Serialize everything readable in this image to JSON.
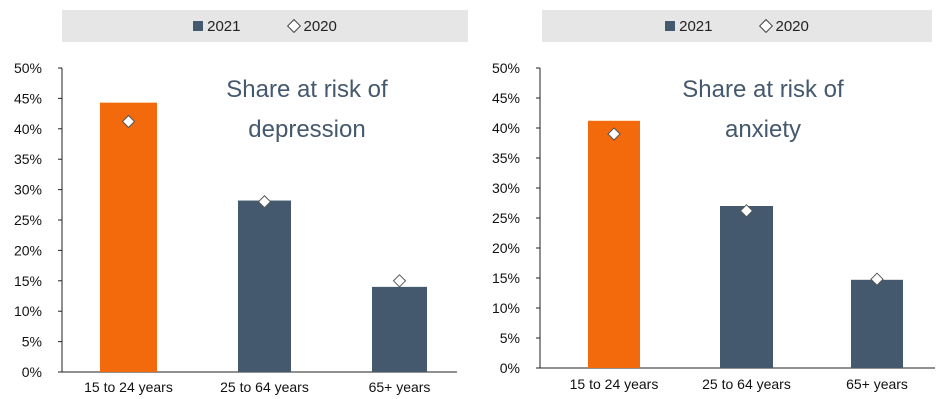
{
  "colors": {
    "bar_youth": "#f26a0b",
    "bar_other": "#44586e",
    "legend_bg": "#e6e6e6",
    "title_text": "#44586e",
    "axis": "#222222"
  },
  "legend": {
    "series_2021": "2021",
    "series_2020": "2020"
  },
  "chart_data": [
    {
      "type": "bar",
      "title_lines": [
        "Share at risk of",
        "depression"
      ],
      "categories": [
        "15 to 24 years",
        "25 to 64 years",
        "65+ years"
      ],
      "series": [
        {
          "name": "2021",
          "values": [
            44.3,
            28.2,
            14.0
          ],
          "marker": "bar"
        },
        {
          "name": "2020",
          "values": [
            41.2,
            28.0,
            15.0
          ],
          "marker": "diamond"
        }
      ],
      "ylim": [
        0,
        50
      ],
      "yticks": [
        "0%",
        "5%",
        "10%",
        "15%",
        "20%",
        "25%",
        "30%",
        "35%",
        "40%",
        "45%",
        "50%"
      ],
      "xlabel": "",
      "ylabel": "",
      "legend_position": "top"
    },
    {
      "type": "bar",
      "title_lines": [
        "Share at risk of",
        "anxiety"
      ],
      "categories": [
        "15 to 24 years",
        "25 to 64 years",
        "65+ years"
      ],
      "series": [
        {
          "name": "2021",
          "values": [
            41.2,
            27.0,
            14.7
          ],
          "marker": "bar"
        },
        {
          "name": "2020",
          "values": [
            39.0,
            26.2,
            14.8
          ],
          "marker": "diamond"
        }
      ],
      "ylim": [
        0,
        50
      ],
      "yticks": [
        "0%",
        "5%",
        "10%",
        "15%",
        "20%",
        "25%",
        "30%",
        "35%",
        "40%",
        "45%",
        "50%"
      ],
      "xlabel": "",
      "ylabel": "",
      "legend_position": "top"
    }
  ]
}
